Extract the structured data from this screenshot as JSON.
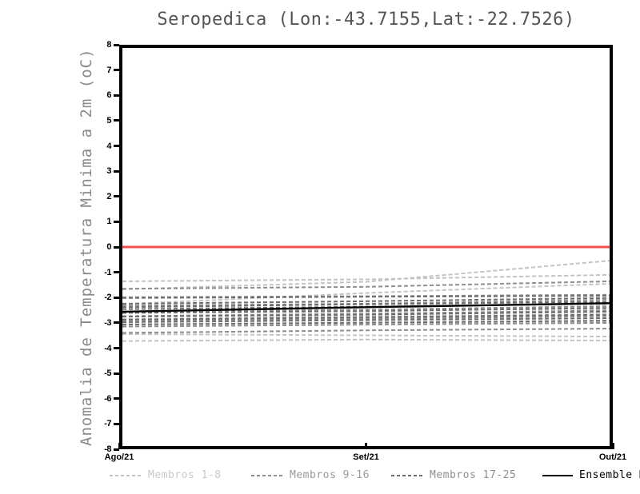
{
  "chart_data": {
    "type": "line",
    "title": "Seropedica (Lon:-43.7155,Lat:-22.7526)",
    "ylabel": "Anomalia de Temperatura Minima a 2m (oC)",
    "xlabel": "",
    "x_categories": [
      "Ago/21",
      "Set/21",
      "Out/21"
    ],
    "ylim": [
      -8,
      8
    ],
    "y_ticks": [
      8,
      7,
      6,
      5,
      4,
      3,
      2,
      1,
      0,
      -1,
      -2,
      -3,
      -4,
      -5,
      -6,
      -7,
      -8
    ],
    "grid": false,
    "legend_position": "bottom",
    "axis_color": "#000000",
    "zero_line": {
      "value": 0,
      "color": "#f4514e"
    },
    "groups": [
      {
        "name": "Membros 1-8",
        "color": "#c3c3c3",
        "legend_text_color": "#c9c9c9",
        "style": "dashed",
        "series": [
          [
            -1.38,
            -1.3,
            -1.12
          ],
          [
            -1.7,
            -1.4,
            -0.55
          ],
          [
            -2.3,
            -1.85,
            -1.48
          ],
          [
            -2.62,
            -2.55,
            -2.48
          ],
          [
            -2.9,
            -2.8,
            -2.7
          ],
          [
            -3.1,
            -3.05,
            -3.0
          ],
          [
            -3.5,
            -3.55,
            -3.6
          ],
          [
            -3.78,
            -3.72,
            -3.76
          ]
        ]
      },
      {
        "name": "Membros 9-16",
        "color": "#8d8d8d",
        "legend_text_color": "#9a9a9a",
        "style": "dashed",
        "series": [
          [
            -1.68,
            -1.6,
            -1.38
          ],
          [
            -2.02,
            -1.98,
            -1.92
          ],
          [
            -2.36,
            -2.28,
            -2.12
          ],
          [
            -2.6,
            -2.52,
            -2.38
          ],
          [
            -2.78,
            -2.68,
            -2.55
          ],
          [
            -2.95,
            -2.88,
            -2.78
          ],
          [
            -3.2,
            -3.12,
            -3.05
          ],
          [
            -3.45,
            -3.35,
            -3.28
          ]
        ]
      },
      {
        "name": "Membros 17-25",
        "color": "#6d6d6d",
        "legend_text_color": "#8f8f8f",
        "style": "dashed",
        "series": [
          [
            -2.05,
            -2.0,
            -1.96
          ],
          [
            -2.28,
            -2.18,
            -2.05
          ],
          [
            -2.5,
            -2.4,
            -2.28
          ],
          [
            -2.65,
            -2.58,
            -2.45
          ],
          [
            -2.8,
            -2.72,
            -2.6
          ],
          [
            -2.92,
            -2.82,
            -2.72
          ],
          [
            -3.02,
            -2.94,
            -2.86
          ],
          [
            -3.12,
            -3.04,
            -2.96
          ],
          [
            -2.42,
            -2.3,
            -2.2
          ]
        ]
      }
    ],
    "mean": {
      "name": "Ensemble Mean",
      "color": "#000000",
      "style": "solid",
      "values": [
        -2.6,
        -2.42,
        -2.26
      ]
    }
  }
}
